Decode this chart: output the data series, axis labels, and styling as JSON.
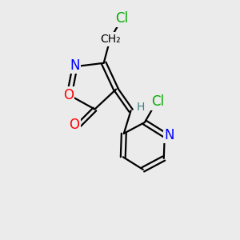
{
  "background_color": "#ebebeb",
  "atom_colors": {
    "C": "#000000",
    "N": "#0000ff",
    "O": "#ff0000",
    "Cl": "#00aa00",
    "H": "#408080"
  },
  "font_size_atoms": 12,
  "font_size_small": 10,
  "lw": 1.6
}
